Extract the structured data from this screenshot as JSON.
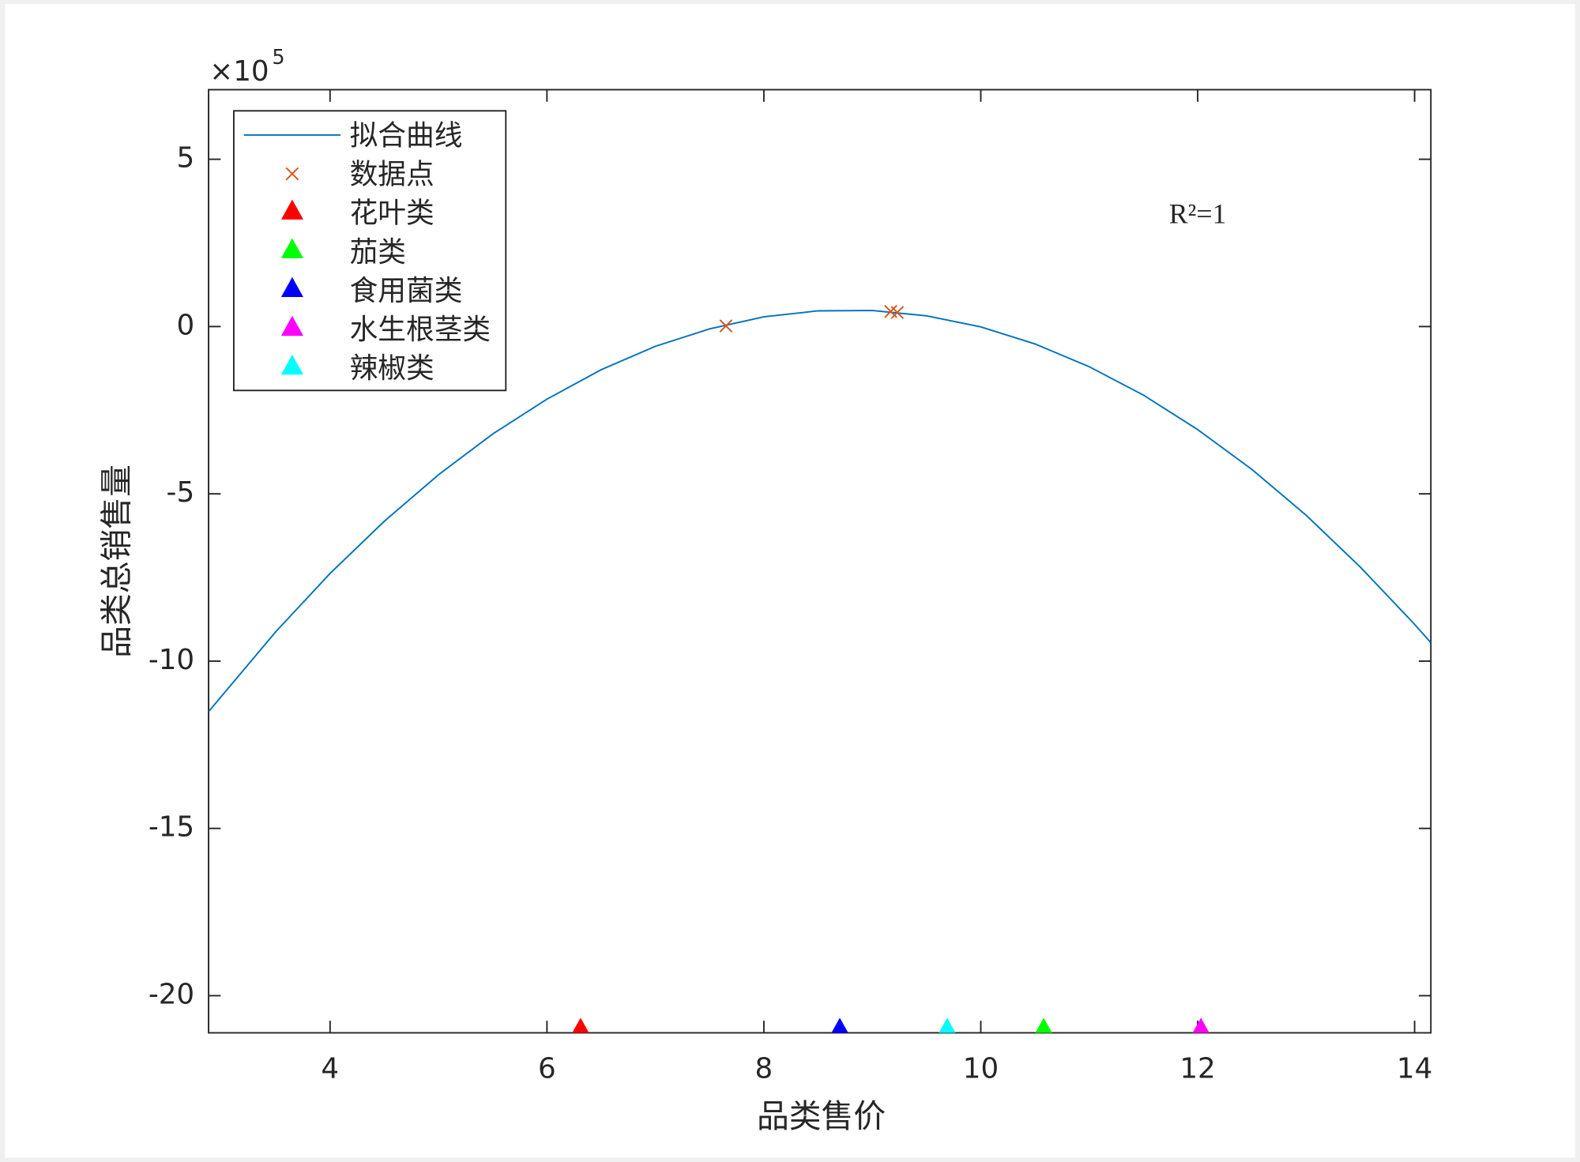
{
  "chart_data": {
    "type": "line",
    "xlabel": "品类售价",
    "ylabel": "品类总销售量",
    "y_multiplier": {
      "base": "×10",
      "exponent": "5"
    },
    "annotation": {
      "text": "R²=1",
      "x": 12.0,
      "y": 3.28
    },
    "xlim": [
      2.88,
      14.15
    ],
    "xticks": [
      4,
      6,
      8,
      10,
      12,
      14
    ],
    "ylim": [
      -21.11,
      7.08
    ],
    "yticks": [
      -20,
      -15,
      -10,
      -5,
      0,
      5
    ],
    "grid": false,
    "legend": "upper left",
    "series": [
      {
        "name": "拟合曲线",
        "color": "#0072bd",
        "style": "line",
        "x": [
          2.88,
          3.5,
          4,
          4.5,
          5,
          5.5,
          6,
          6.5,
          7,
          7.5,
          8,
          8.5,
          9,
          9.5,
          10,
          10.5,
          11,
          11.5,
          12,
          12.5,
          13,
          13.5,
          14,
          14.15
        ],
        "values": [
          -11.51,
          -9.12,
          -7.38,
          -5.82,
          -4.43,
          -3.21,
          -2.17,
          -1.29,
          -0.59,
          -0.07,
          0.29,
          0.47,
          0.48,
          0.32,
          -0.01,
          -0.52,
          -1.2,
          -2.05,
          -3.08,
          -4.27,
          -5.64,
          -7.19,
          -8.9,
          -9.45
        ]
      },
      {
        "name": "数据点",
        "color": "#d95319",
        "style": "x",
        "x": [
          7.65,
          9.17,
          9.23
        ],
        "values": [
          0.02,
          0.45,
          0.42
        ]
      },
      {
        "name": "花叶类",
        "color": "#ff0000",
        "style": "triangle",
        "x": [
          6.31
        ],
        "values": [
          -20.96
        ]
      },
      {
        "name": "茄类",
        "color": "#00ff00",
        "style": "triangle",
        "x": [
          10.58
        ],
        "values": [
          -20.96
        ]
      },
      {
        "name": "食用菌类",
        "color": "#0000ff",
        "style": "triangle",
        "x": [
          8.7
        ],
        "values": [
          -20.96
        ]
      },
      {
        "name": "水生根茎类",
        "color": "#ff00ff",
        "style": "triangle",
        "x": [
          12.03
        ],
        "values": [
          -20.96
        ]
      },
      {
        "name": "辣椒类",
        "color": "#00ffff",
        "style": "triangle",
        "x": [
          9.69
        ],
        "values": [
          -20.96
        ]
      }
    ]
  }
}
